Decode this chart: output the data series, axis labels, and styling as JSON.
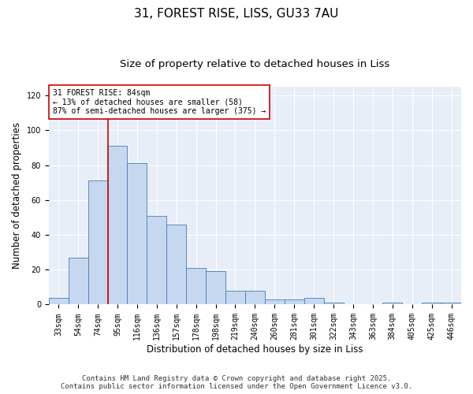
{
  "title": "31, FOREST RISE, LISS, GU33 7AU",
  "subtitle": "Size of property relative to detached houses in Liss",
  "xlabel": "Distribution of detached houses by size in Liss",
  "ylabel": "Number of detached properties",
  "bins": [
    "33sqm",
    "54sqm",
    "74sqm",
    "95sqm",
    "116sqm",
    "136sqm",
    "157sqm",
    "178sqm",
    "198sqm",
    "219sqm",
    "240sqm",
    "260sqm",
    "281sqm",
    "301sqm",
    "322sqm",
    "343sqm",
    "363sqm",
    "384sqm",
    "405sqm",
    "425sqm",
    "446sqm"
  ],
  "values": [
    4,
    27,
    71,
    91,
    81,
    51,
    46,
    21,
    19,
    8,
    8,
    3,
    3,
    4,
    1,
    0,
    0,
    1,
    0,
    1,
    1
  ],
  "bar_color": "#c5d8f0",
  "bar_edge_color": "#4a7db5",
  "vline_x": 2.0,
  "vline_color": "#cc0000",
  "annotation_text": "31 FOREST RISE: 84sqm\n← 13% of detached houses are smaller (58)\n87% of semi-detached houses are larger (375) →",
  "annotation_box_color": "#ffffff",
  "annotation_box_edge": "#cc0000",
  "ylim": [
    0,
    125
  ],
  "yticks": [
    0,
    20,
    40,
    60,
    80,
    100,
    120
  ],
  "background_color": "#e8eef7",
  "footer1": "Contains HM Land Registry data © Crown copyright and database right 2025.",
  "footer2": "Contains public sector information licensed under the Open Government Licence v3.0.",
  "title_fontsize": 11,
  "subtitle_fontsize": 9.5,
  "axis_label_fontsize": 8.5,
  "tick_fontsize": 7,
  "annotation_fontsize": 7,
  "footer_fontsize": 6.5
}
